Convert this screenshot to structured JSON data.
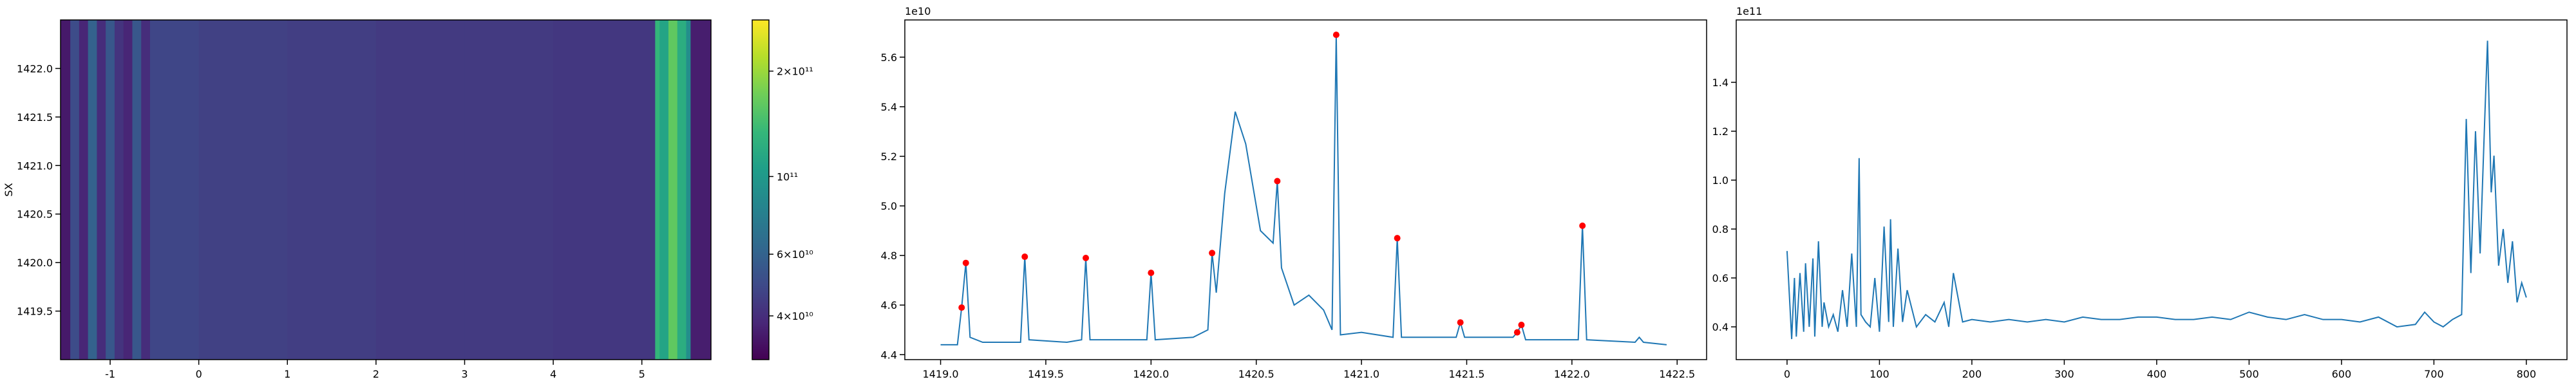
{
  "chart_data": [
    {
      "type": "heatmap",
      "y_label": "SX",
      "colormap": "viridis",
      "x_edges": [
        -1.56,
        -1.45,
        -1.35,
        -1.25,
        -1.15,
        -1.05,
        -0.95,
        -0.85,
        -0.75,
        -0.65,
        -0.55,
        0,
        1,
        2,
        3,
        4,
        5.15,
        5.2,
        5.3,
        5.4,
        5.5,
        5.55,
        5.78
      ],
      "values": [
        35000000000,
        50000000000,
        38000000000,
        60000000000,
        40000000000,
        55000000000,
        42000000000,
        38000000000,
        55000000000,
        40000000000,
        48000000000,
        46000000000,
        45000000000,
        44000000000,
        44000000000,
        43000000000,
        130000000000,
        110000000000,
        160000000000,
        120000000000,
        90000000000,
        36000000000
      ],
      "xlim": [
        -1.56,
        5.78
      ],
      "xticks": [
        -1,
        0,
        1,
        2,
        3,
        4,
        5
      ],
      "ylim": [
        1419.0,
        1422.5
      ],
      "yticks": [
        1419.5,
        {
          "value": 1420,
          "label": "1420.0"
        },
        1420.5,
        {
          "value": 1421,
          "label": "1421.0"
        },
        1421.5,
        {
          "value": 1422,
          "label": "1422.0"
        }
      ],
      "colorbar": {
        "scale": "log",
        "clim": [
          30000000000,
          280000000000
        ],
        "ticks": [
          {
            "value": 40000000000,
            "label": "4×10¹⁰"
          },
          {
            "value": 60000000000,
            "label": "6×10¹⁰"
          },
          {
            "value": 100000000000,
            "label": "10¹¹"
          },
          {
            "value": 200000000000,
            "label": "2×10¹¹"
          }
        ]
      }
    },
    {
      "type": "line",
      "y_offset_label": "1e10",
      "xlim": [
        1418.83,
        1422.64
      ],
      "ylim": [
        4.38,
        5.75
      ],
      "xticks": [
        {
          "value": 1419,
          "label": "1419.0"
        },
        1419.5,
        {
          "value": 1420,
          "label": "1420.0"
        },
        1420.5,
        {
          "value": 1421,
          "label": "1421.0"
        },
        1421.5,
        {
          "value": 1422,
          "label": "1422.0"
        },
        1422.5
      ],
      "yticks": [
        4.4,
        4.6,
        4.8,
        {
          "value": 5,
          "label": "5.0"
        },
        5.2,
        5.4,
        5.6
      ],
      "series": [
        {
          "color": "#1f77b4",
          "marker": "none",
          "x": [
            1419.0,
            1419.08,
            1419.1,
            1419.12,
            1419.14,
            1419.2,
            1419.38,
            1419.4,
            1419.42,
            1419.6,
            1419.67,
            1419.69,
            1419.71,
            1419.98,
            1420.0,
            1420.02,
            1420.2,
            1420.27,
            1420.29,
            1420.31,
            1420.35,
            1420.4,
            1420.45,
            1420.52,
            1420.58,
            1420.6,
            1420.62,
            1420.68,
            1420.75,
            1420.82,
            1420.86,
            1420.88,
            1420.9,
            1421.0,
            1421.15,
            1421.17,
            1421.19,
            1421.45,
            1421.47,
            1421.49,
            1421.72,
            1421.74,
            1421.76,
            1421.78,
            1422.03,
            1422.05,
            1422.07,
            1422.3,
            1422.32,
            1422.34,
            1422.45
          ],
          "values": [
            4.44,
            4.44,
            4.59,
            4.77,
            4.47,
            4.45,
            4.45,
            4.795,
            4.46,
            4.45,
            4.46,
            4.79,
            4.46,
            4.46,
            4.73,
            4.46,
            4.47,
            4.5,
            4.81,
            4.65,
            5.05,
            5.38,
            5.25,
            4.9,
            4.85,
            5.1,
            4.75,
            4.6,
            4.64,
            4.58,
            4.5,
            5.69,
            4.48,
            4.49,
            4.47,
            4.87,
            4.47,
            4.47,
            4.53,
            4.47,
            4.47,
            4.49,
            4.52,
            4.46,
            4.46,
            4.92,
            4.46,
            4.45,
            4.47,
            4.45,
            4.44
          ]
        },
        {
          "color": "#ff0000",
          "marker": "dot",
          "line": false,
          "x": [
            1419.1,
            1419.12,
            1419.4,
            1419.69,
            1420.0,
            1420.29,
            1420.6,
            1420.88,
            1421.17,
            1421.47,
            1421.74,
            1421.76,
            1422.05
          ],
          "values": [
            4.59,
            4.77,
            4.795,
            4.79,
            4.73,
            4.81,
            5.1,
            5.69,
            4.87,
            4.53,
            4.49,
            4.52,
            4.92
          ]
        }
      ]
    },
    {
      "type": "line",
      "y_offset_label": "1e11",
      "xlim": [
        -55,
        844
      ],
      "ylim": [
        0.266,
        1.655
      ],
      "xticks": [
        0,
        100,
        200,
        300,
        400,
        500,
        600,
        700,
        800
      ],
      "yticks": [
        0.4,
        0.6,
        0.8,
        {
          "value": 1,
          "label": "1.0"
        },
        1.2,
        1.4
      ],
      "series": [
        {
          "color": "#1f77b4",
          "marker": "none",
          "x": [
            0,
            5,
            8,
            10,
            14,
            18,
            20,
            24,
            28,
            30,
            34,
            38,
            40,
            45,
            50,
            55,
            60,
            65,
            70,
            75,
            78,
            80,
            85,
            90,
            95,
            100,
            105,
            110,
            112,
            115,
            120,
            125,
            130,
            140,
            150,
            160,
            170,
            175,
            180,
            190,
            200,
            220,
            240,
            260,
            280,
            300,
            320,
            340,
            360,
            380,
            400,
            420,
            440,
            460,
            480,
            500,
            520,
            540,
            560,
            580,
            600,
            620,
            640,
            660,
            680,
            690,
            700,
            710,
            720,
            730,
            735,
            740,
            745,
            750,
            755,
            758,
            762,
            765,
            770,
            775,
            780,
            785,
            790,
            795,
            800
          ],
          "values": [
            0.71,
            0.35,
            0.6,
            0.36,
            0.62,
            0.38,
            0.66,
            0.4,
            0.68,
            0.36,
            0.75,
            0.4,
            0.5,
            0.4,
            0.45,
            0.38,
            0.55,
            0.4,
            0.7,
            0.4,
            1.09,
            0.45,
            0.42,
            0.4,
            0.6,
            0.38,
            0.81,
            0.42,
            0.84,
            0.4,
            0.72,
            0.42,
            0.55,
            0.4,
            0.45,
            0.42,
            0.5,
            0.4,
            0.62,
            0.42,
            0.43,
            0.42,
            0.43,
            0.42,
            0.43,
            0.42,
            0.44,
            0.43,
            0.43,
            0.44,
            0.44,
            0.43,
            0.43,
            0.44,
            0.43,
            0.46,
            0.44,
            0.43,
            0.45,
            0.43,
            0.43,
            0.42,
            0.44,
            0.4,
            0.41,
            0.46,
            0.42,
            0.4,
            0.43,
            0.45,
            1.25,
            0.62,
            1.2,
            0.7,
            1.25,
            1.57,
            0.95,
            1.1,
            0.65,
            0.8,
            0.58,
            0.75,
            0.5,
            0.58,
            0.52
          ]
        }
      ]
    }
  ]
}
